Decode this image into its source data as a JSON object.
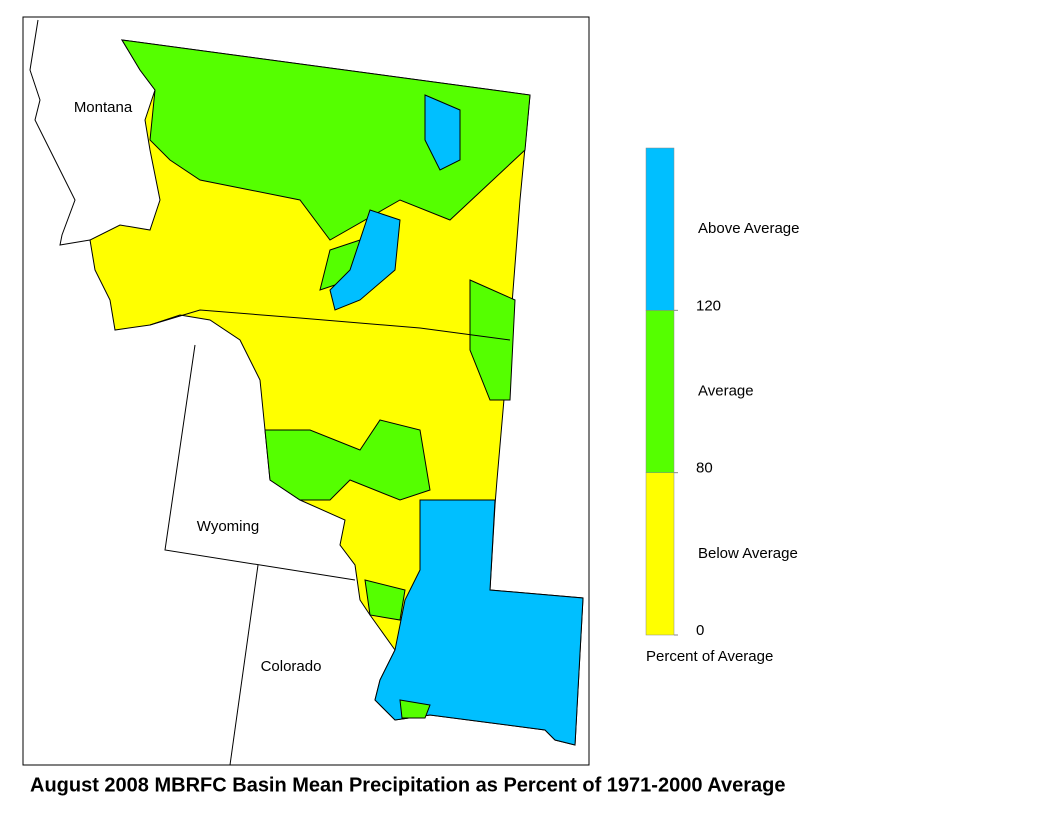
{
  "title": "August 2008 MBRFC Basin Mean Precipitation as Percent of 1971-2000 Average",
  "map": {
    "state_labels": [
      "Montana",
      "Wyoming",
      "Colorado"
    ]
  },
  "legend": {
    "title": "Percent of Average",
    "ticks": [
      0,
      80,
      120
    ],
    "classes": [
      {
        "label": "Below Average",
        "color": "#ffff00"
      },
      {
        "label": "Average",
        "color": "#55ff00"
      },
      {
        "label": "Above Average",
        "color": "#00bfff"
      }
    ]
  }
}
